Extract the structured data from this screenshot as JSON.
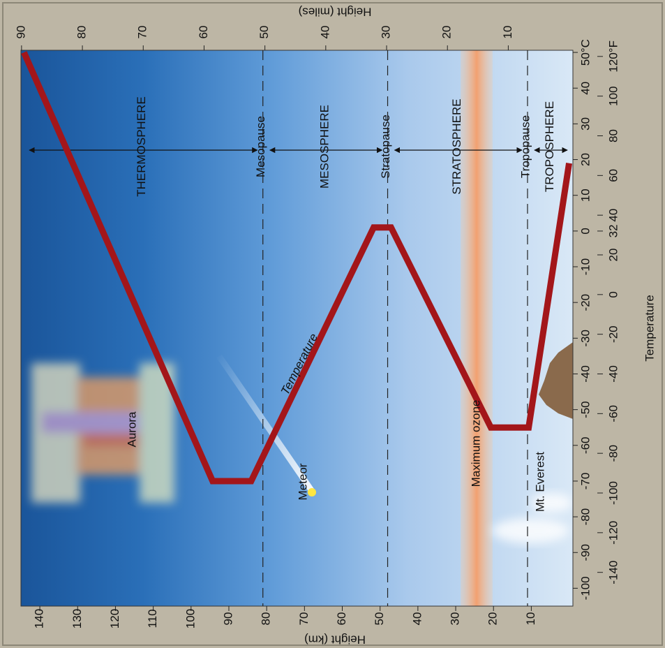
{
  "chart_data": {
    "type": "line",
    "x_label": "Temperature",
    "y_label": "Height (km)",
    "y2_label": "Height (miles)",
    "xlim": [
      -105,
      50.6
    ],
    "xticks": [
      -100,
      -90,
      -80,
      -70,
      -60,
      -50,
      -40,
      -30,
      -20,
      -10,
      0,
      10,
      20,
      30,
      40,
      {
        "value": 50,
        "label": "50°C"
      }
    ],
    "x2lim": [
      -157,
      123.1
    ],
    "x2ticks": [
      -140,
      -120,
      -100,
      -80,
      -60,
      -40,
      -20,
      0,
      20,
      32,
      40,
      60,
      80,
      100,
      {
        "value": 120,
        "label": "120°F"
      }
    ],
    "ylim": [
      -1,
      145
    ],
    "yticks": [
      10,
      20,
      30,
      40,
      50,
      60,
      70,
      80,
      90,
      100,
      110,
      120,
      130,
      140
    ],
    "y2lim": [
      -0.62,
      90.1
    ],
    "y2ticks": [
      10,
      20,
      30,
      40,
      50,
      60,
      70,
      80,
      90
    ],
    "series": [
      {
        "name": "Temperature",
        "color": "#a3161a",
        "x": [
          19,
          -55,
          -55,
          1,
          1,
          -70,
          -70,
          50
        ],
        "values": [
          0,
          10.7,
          20.7,
          47.1,
          51.7,
          84.1,
          94.3,
          144.2
        ]
      }
    ],
    "boundaries": [
      {
        "label": "Tropopause",
        "value": 11
      },
      {
        "label": "Stratopause",
        "value": 48
      },
      {
        "label": "Mesopause",
        "value": 81
      }
    ],
    "regions": [
      "TROPOSPHERE",
      "STRATOSPHERE",
      "MESOSPHERE",
      "THERMOSPHERE"
    ],
    "annotations": [
      "Aurora",
      "Meteor",
      "Maximum ozone",
      "Mt. Everest"
    ]
  }
}
